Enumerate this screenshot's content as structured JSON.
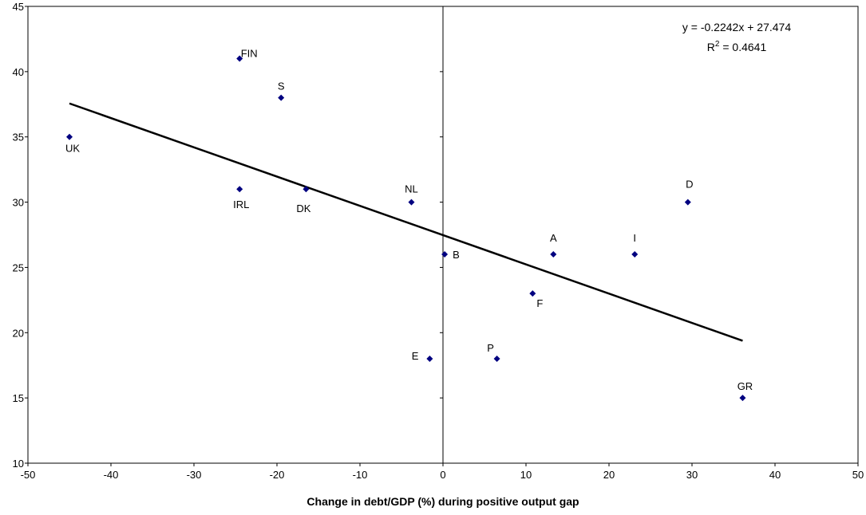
{
  "chart_data": {
    "type": "scatter",
    "title": "",
    "xlabel": "Change in debt/GDP (%) during positive output gap",
    "ylabel": "",
    "xlim": [
      -50,
      50
    ],
    "ylim": [
      10,
      45
    ],
    "x_ticks": [
      -50,
      -40,
      -30,
      -20,
      -10,
      0,
      10,
      20,
      30,
      40,
      50
    ],
    "y_ticks": [
      10,
      15,
      20,
      25,
      30,
      35,
      40,
      45
    ],
    "grid": false,
    "marker": "diamond",
    "marker_color": "#000080",
    "points": [
      {
        "label": "FIN",
        "x": -24.5,
        "y": 41
      },
      {
        "label": "S",
        "x": -19.5,
        "y": 38
      },
      {
        "label": "UK",
        "x": -45,
        "y": 35
      },
      {
        "label": "IRL",
        "x": -24.5,
        "y": 31
      },
      {
        "label": "DK",
        "x": -16.5,
        "y": 31
      },
      {
        "label": "NL",
        "x": -3.8,
        "y": 30
      },
      {
        "label": "B",
        "x": 0.2,
        "y": 26
      },
      {
        "label": "E",
        "x": -1.6,
        "y": 18
      },
      {
        "label": "P",
        "x": 6.5,
        "y": 18
      },
      {
        "label": "F",
        "x": 10.8,
        "y": 23
      },
      {
        "label": "A",
        "x": 13.3,
        "y": 26
      },
      {
        "label": "I",
        "x": 23.1,
        "y": 26
      },
      {
        "label": "D",
        "x": 29.5,
        "y": 30
      },
      {
        "label": "GR",
        "x": 36.1,
        "y": 15
      }
    ],
    "trendline": {
      "slope": -0.2242,
      "intercept": 27.474,
      "x_range": [
        -45,
        36.1
      ],
      "color": "#000000",
      "equation_text": "y = -0.2242x + 27.474",
      "r2_prefix": "R",
      "r2_sup": "2",
      "r2_value": " = 0.4641"
    }
  }
}
